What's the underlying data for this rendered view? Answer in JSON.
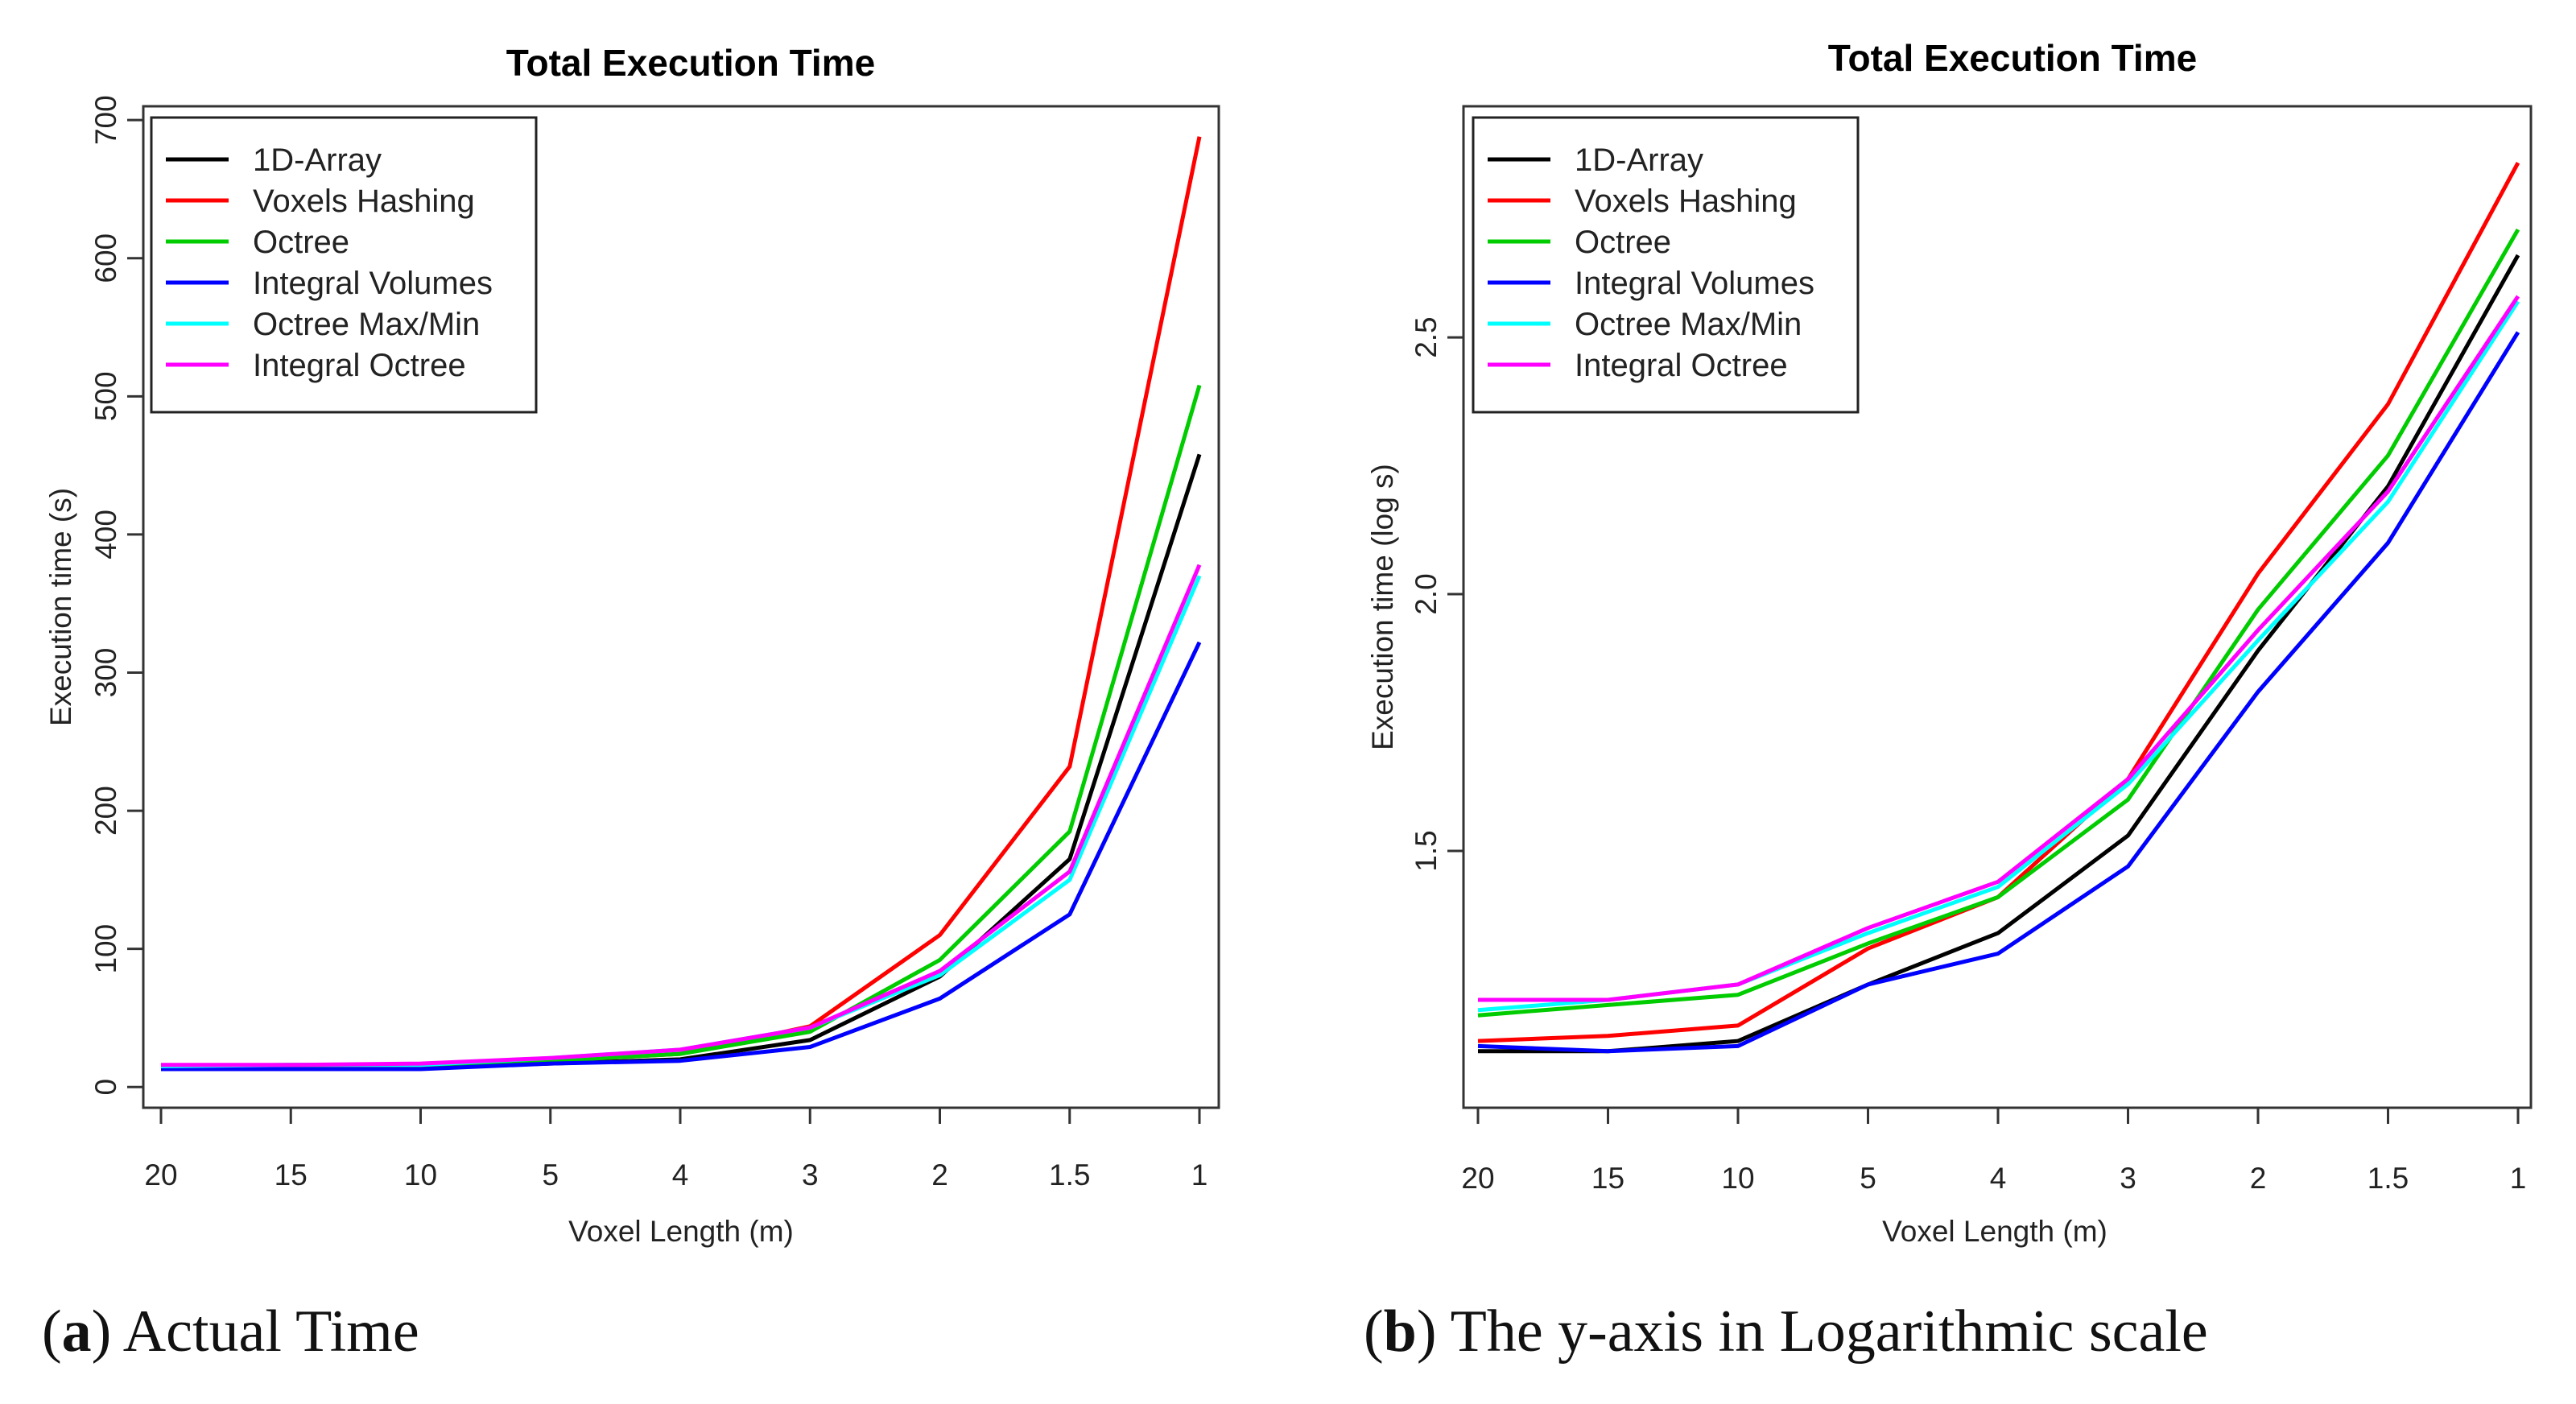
{
  "captions": [
    {
      "prefix": "(",
      "letter": "a",
      "rest": ") Actual Time"
    },
    {
      "prefix": "(",
      "letter": "b",
      "rest": ") The y-axis in Logarithmic scale"
    }
  ],
  "series_colors": {
    "1D-Array": "#000000",
    "Voxels Hashing": "#ff0000",
    "Octree": "#00cc00",
    "Integral Volumes": "#0000ff",
    "Octree Max/Min": "#00ffff",
    "Integral Octree": "#ff00ff"
  },
  "chart_data": [
    {
      "type": "line",
      "title": "Total Execution Time",
      "xlabel": "Voxel Length (m)",
      "ylabel": "Execution time (s)",
      "categories": [
        "20",
        "15",
        "10",
        "5",
        "4",
        "3",
        "2",
        "1.5",
        "1"
      ],
      "yticks": [
        0,
        100,
        200,
        300,
        400,
        500,
        600,
        700
      ],
      "ylim": [
        -15,
        710
      ],
      "grid": false,
      "legend_position": "top-left",
      "series": [
        {
          "name": "1D-Array",
          "color": "#000000",
          "values": [
            13,
            13,
            14,
            17,
            20,
            34,
            80,
            165,
            458
          ]
        },
        {
          "name": "Voxels Hashing",
          "color": "#ff0000",
          "values": [
            14,
            14,
            15,
            19,
            24,
            44,
            110,
            232,
            688
          ]
        },
        {
          "name": "Octree",
          "color": "#00cc00",
          "values": [
            15,
            16,
            16,
            19,
            24,
            40,
            92,
            185,
            508
          ]
        },
        {
          "name": "Integral Volumes",
          "color": "#0000ff",
          "values": [
            13,
            13,
            13,
            17,
            19,
            29,
            64,
            125,
            322
          ]
        },
        {
          "name": "Octree Max/Min",
          "color": "#00ffff",
          "values": [
            15,
            16,
            16,
            21,
            27,
            43,
            81,
            150,
            370
          ]
        },
        {
          "name": "Integral Octree",
          "color": "#ff00ff",
          "values": [
            16,
            16,
            17,
            21,
            27,
            43,
            84,
            156,
            378
          ]
        }
      ]
    },
    {
      "type": "line",
      "title": "Total Execution Time",
      "xlabel": "Voxel Length (m)",
      "ylabel": "Execution time (log s)",
      "categories": [
        "20",
        "15",
        "10",
        "5",
        "4",
        "3",
        "2",
        "1.5",
        "1"
      ],
      "yticks": [
        1.5,
        2.0,
        2.5
      ],
      "ytick_labels": [
        "1.5",
        "2.0",
        "2.5"
      ],
      "ylim": [
        1.0,
        2.95
      ],
      "grid": false,
      "legend_position": "top-left",
      "series": [
        {
          "name": "1D-Array",
          "color": "#000000",
          "values": [
            1.11,
            1.11,
            1.13,
            1.24,
            1.34,
            1.53,
            1.89,
            2.21,
            2.66
          ]
        },
        {
          "name": "Voxels Hashing",
          "color": "#ff0000",
          "values": [
            1.13,
            1.14,
            1.16,
            1.31,
            1.41,
            1.64,
            2.04,
            2.37,
            2.84
          ]
        },
        {
          "name": "Octree",
          "color": "#00cc00",
          "values": [
            1.18,
            1.2,
            1.22,
            1.32,
            1.41,
            1.6,
            1.97,
            2.27,
            2.71
          ]
        },
        {
          "name": "Integral Volumes",
          "color": "#0000ff",
          "values": [
            1.12,
            1.11,
            1.12,
            1.24,
            1.3,
            1.47,
            1.81,
            2.1,
            2.51
          ]
        },
        {
          "name": "Octree Max/Min",
          "color": "#00ffff",
          "values": [
            1.19,
            1.21,
            1.24,
            1.34,
            1.43,
            1.63,
            1.91,
            2.18,
            2.57
          ]
        },
        {
          "name": "Integral Octree",
          "color": "#ff00ff",
          "values": [
            1.21,
            1.21,
            1.24,
            1.35,
            1.44,
            1.64,
            1.93,
            2.2,
            2.58
          ]
        }
      ]
    }
  ]
}
